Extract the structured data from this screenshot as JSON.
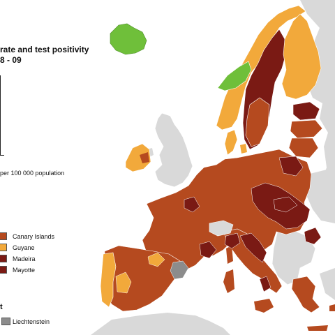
{
  "title": {
    "line1": "rate and test positivity",
    "line2": "8 - 09"
  },
  "legend": {
    "population_note": "per 100 000 population",
    "rows": [
      {
        "label": "Canary Islands",
        "color": "#b54a1f"
      },
      {
        "label": "Guyane",
        "color": "#f2a93b"
      },
      {
        "label": "Madeira",
        "color": "#7a1a14"
      },
      {
        "label": "Mayotte",
        "color": "#7a1a14"
      }
    ],
    "no_data_section_label": "t",
    "no_data_row": {
      "label": "Liechtenstein",
      "color": "#8c8c8c"
    }
  },
  "colors": {
    "sea": "#ffffff",
    "non_eu_land": "#d9d9d9",
    "high": "#b54a1f",
    "very_high": "#7a1a14",
    "medium": "#f2a93b",
    "low": "#6fbf3a",
    "no_data": "#8c8c8c",
    "border": "#8a3a20"
  }
}
